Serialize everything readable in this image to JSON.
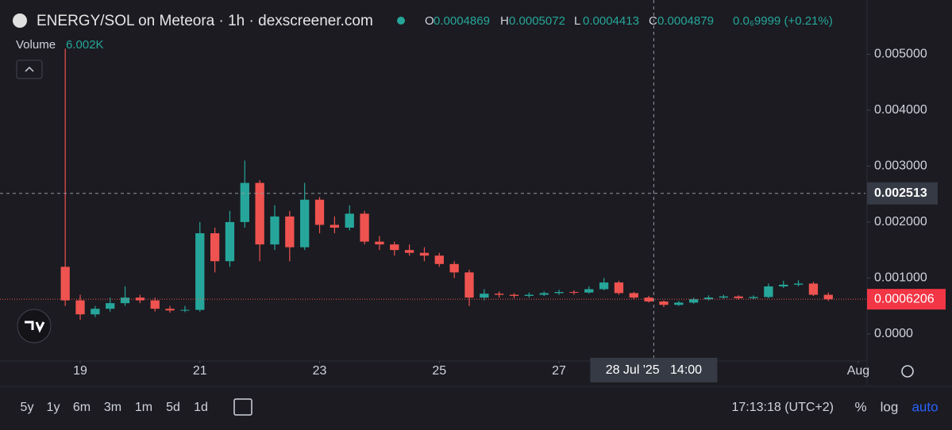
{
  "chart_data": {
    "type": "candlestick",
    "title": "ENERGY/SOL on Meteora · 1h · dexscreener.com",
    "ohlc_header": [
      {
        "label": "O",
        "value": 0.0004869
      },
      {
        "label": "H",
        "value": 0.0005072
      },
      {
        "label": "L",
        "value": 0.0004413
      },
      {
        "label": "C",
        "value": 0.0004879
      }
    ],
    "change": "0.0₆9999 (+0.21%)",
    "volume_label": "Volume",
    "volume_value": "6.002K",
    "up_color": "#26a69a",
    "down_color": "#ef5350",
    "candles": {
      "x": [
        18.75,
        19,
        19.25,
        19.5,
        19.75,
        20,
        20.25,
        20.5,
        20.75,
        21,
        21.25,
        21.5,
        21.75,
        22,
        22.25,
        22.5,
        22.75,
        23,
        23.25,
        23.5,
        23.75,
        24,
        24.25,
        24.5,
        24.75,
        25,
        25.25,
        25.5,
        25.75,
        26,
        26.25,
        26.5,
        26.75,
        27,
        27.25,
        27.5,
        27.75,
        28,
        28.25,
        28.5,
        28.75,
        29,
        29.25,
        29.5,
        29.75,
        30,
        30.25,
        30.5,
        30.75,
        31,
        31.25,
        31.5
      ],
      "open": [
        0.0012,
        0.0006,
        0.00035,
        0.00045,
        0.00055,
        0.00065,
        0.0006,
        0.00045,
        0.00042,
        0.00043,
        0.0018,
        0.0013,
        0.002,
        0.0027,
        0.0016,
        0.0021,
        0.00155,
        0.0024,
        0.00195,
        0.0019,
        0.00215,
        0.00165,
        0.0016,
        0.0015,
        0.00145,
        0.0014,
        0.00125,
        0.0011,
        0.00065,
        0.00072,
        0.0007,
        0.00068,
        0.0007,
        0.00073,
        0.00075,
        0.00074,
        0.0008,
        0.00092,
        0.00073,
        0.00065,
        0.00058,
        0.00052,
        0.00056,
        0.00062,
        0.00065,
        0.00067,
        0.00064,
        0.00066,
        0.00085,
        0.00088,
        0.0009,
        0.0007
      ],
      "high": [
        0.0051,
        0.0007,
        0.0005,
        0.00065,
        0.00085,
        0.0007,
        0.00065,
        0.0005,
        0.0005,
        0.002,
        0.0019,
        0.0022,
        0.0031,
        0.00275,
        0.0023,
        0.0022,
        0.0027,
        0.00245,
        0.0021,
        0.0023,
        0.0022,
        0.00175,
        0.00165,
        0.0016,
        0.00155,
        0.00145,
        0.0013,
        0.00115,
        0.0008,
        0.00076,
        0.00073,
        0.00074,
        0.00076,
        0.00079,
        0.00078,
        0.00085,
        0.001,
        0.00095,
        0.00075,
        0.00068,
        0.0006,
        0.00059,
        0.00065,
        0.00069,
        0.0007,
        0.00069,
        0.00069,
        0.0009,
        0.00095,
        0.00096,
        0.00093,
        0.00074
      ],
      "low": [
        0.0005,
        0.00025,
        0.0003,
        0.0004,
        0.0005,
        0.00055,
        0.0004,
        0.00038,
        0.00039,
        0.0004,
        0.0011,
        0.0012,
        0.0019,
        0.0013,
        0.0015,
        0.0013,
        0.0015,
        0.0018,
        0.0018,
        0.00185,
        0.0016,
        0.0015,
        0.0014,
        0.0014,
        0.0013,
        0.0012,
        0.001,
        0.0005,
        0.0006,
        0.00065,
        0.00064,
        0.00065,
        0.00068,
        0.0007,
        0.0007,
        0.00072,
        0.00078,
        0.0007,
        0.00062,
        0.00056,
        0.00048,
        0.0005,
        0.00054,
        0.0006,
        0.00063,
        0.00061,
        0.00062,
        0.00064,
        0.00082,
        0.00085,
        0.00068,
        0.00059
      ],
      "close": [
        0.0006,
        0.00035,
        0.00045,
        0.00055,
        0.00065,
        0.0006,
        0.00045,
        0.00042,
        0.00043,
        0.0018,
        0.0013,
        0.002,
        0.0027,
        0.0016,
        0.0021,
        0.00155,
        0.0024,
        0.00195,
        0.0019,
        0.00215,
        0.00165,
        0.0016,
        0.0015,
        0.00145,
        0.0014,
        0.00125,
        0.0011,
        0.00065,
        0.00072,
        0.0007,
        0.00068,
        0.0007,
        0.00073,
        0.00075,
        0.00074,
        0.0008,
        0.00092,
        0.00073,
        0.00065,
        0.00058,
        0.00052,
        0.00056,
        0.00062,
        0.00065,
        0.00067,
        0.00064,
        0.00066,
        0.00085,
        0.00088,
        0.0009,
        0.0007,
        0.00062
      ]
    },
    "xlim": [
      17.66,
      32.12
    ],
    "xticks": [
      19,
      21,
      23,
      25,
      27,
      {
        "value": 32,
        "label": "Aug"
      }
    ],
    "ylim": [
      -0.00037,
      0.00597
    ],
    "yticks": [
      {
        "value": 0,
        "label": "0.0000"
      },
      {
        "value": 0.001,
        "label": "0.001000"
      },
      {
        "value": 0.002,
        "label": "0.002000"
      },
      {
        "value": 0.003,
        "label": "0.003000"
      },
      {
        "value": 0.004,
        "label": "0.004000"
      },
      {
        "value": 0.005,
        "label": "0.005000"
      }
    ],
    "grid": false,
    "crosshair": {
      "price": 0.002513,
      "x": 28.583,
      "time_label": "28 Jul '25   14:00"
    },
    "last_price": 0.0006206,
    "timeframes": [
      "5y",
      "1y",
      "6m",
      "3m",
      "1m",
      "5d",
      "1d"
    ],
    "clock": "17:13:18 (UTC+2)",
    "scale_options": [
      "%",
      "log",
      "auto"
    ]
  }
}
